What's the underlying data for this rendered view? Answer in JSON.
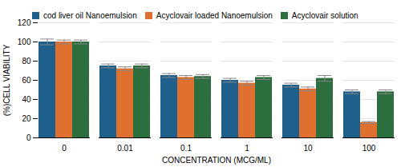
{
  "chart_data": {
    "type": "bar",
    "xlabel": "CONCENTRATION (MCG/ML)",
    "ylabel": "(%)CELL VIABILITY",
    "categories": [
      "0",
      "0.01",
      "0.1",
      "1",
      "10",
      "100"
    ],
    "series": [
      {
        "name": "cod liver oil Nanoemulsion",
        "color": "#1f5f8b",
        "values": [
          100,
          75,
          65,
          60,
          55,
          48
        ],
        "errors": [
          3,
          2,
          2,
          2,
          2,
          2
        ]
      },
      {
        "name": "Acyclovair  loaded Nanoemulsion",
        "color": "#e07030",
        "values": [
          100,
          72,
          63,
          57,
          51,
          16
        ],
        "errors": [
          2,
          2,
          2,
          2,
          2,
          1
        ]
      },
      {
        "name": "Acyclovair solution",
        "color": "#2d6e3e",
        "values": [
          100,
          75,
          64,
          63,
          62,
          48
        ],
        "errors": [
          2,
          2,
          2,
          2,
          3,
          2
        ]
      }
    ],
    "ylim": [
      0,
      120
    ],
    "yticks": [
      0,
      20,
      40,
      60,
      80,
      100,
      120
    ],
    "grid": true,
    "legend": "upper left"
  }
}
